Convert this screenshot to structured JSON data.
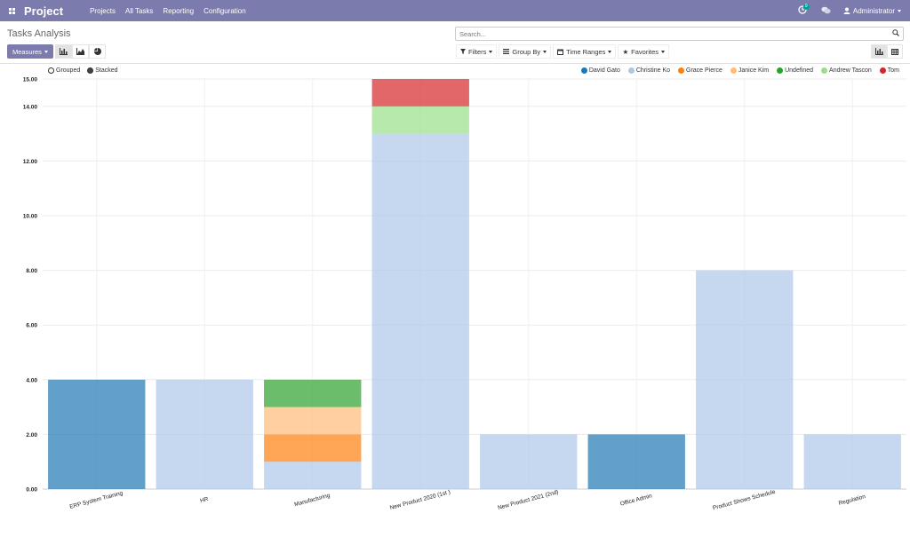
{
  "navbar": {
    "brand": "Project",
    "menu": [
      "Projects",
      "All Tasks",
      "Reporting",
      "Configuration"
    ],
    "activity_count": "9",
    "user": "Administrator",
    "color": "#7c7bad"
  },
  "page": {
    "title": "Tasks Analysis",
    "measures_label": "Measures",
    "search_placeholder": "Search...",
    "filters_label": "Filters",
    "groupby_label": "Group By",
    "timeranges_label": "Time Ranges",
    "favorites_label": "Favorites"
  },
  "legend_mode": {
    "grouped": "Grouped",
    "stacked": "Stacked",
    "selected": "stacked"
  },
  "chart_data": {
    "type": "bar",
    "stacked": true,
    "ylim": [
      0,
      15
    ],
    "yticks": [
      "0.00",
      "2.00",
      "4.00",
      "6.00",
      "8.00",
      "10.00",
      "12.00",
      "14.00",
      "15.00"
    ],
    "ytick_values": [
      0,
      2,
      4,
      6,
      8,
      10,
      12,
      14,
      15
    ],
    "categories": [
      "ERP System Training",
      "HR",
      "Manufacturing",
      "New Product 2020 (1st )",
      "New Product 2021 (2nd)",
      "Office Admin",
      "Product Shows Schedule",
      "Regulation"
    ],
    "series": [
      {
        "name": "David Gato",
        "color": "#1f77b4",
        "values": [
          4,
          0,
          0,
          0,
          0,
          2,
          0,
          0
        ]
      },
      {
        "name": "Christine Ko",
        "color": "#aec7e8",
        "values": [
          0,
          4,
          1,
          13,
          2,
          0,
          8,
          2
        ]
      },
      {
        "name": "Grace Pierce",
        "color": "#ff7f0e",
        "values": [
          0,
          0,
          1,
          0,
          0,
          0,
          0,
          0
        ]
      },
      {
        "name": "Janice Kim",
        "color": "#ffbb78",
        "values": [
          0,
          0,
          1,
          0,
          0,
          0,
          0,
          0
        ]
      },
      {
        "name": "Undefined",
        "color": "#2ca02c",
        "values": [
          0,
          0,
          1,
          0,
          0,
          0,
          0,
          0
        ]
      },
      {
        "name": "Andrew Tascon",
        "color": "#98df8a",
        "values": [
          0,
          0,
          0,
          1,
          0,
          0,
          0,
          0
        ]
      },
      {
        "name": "Tom",
        "color": "#d62728",
        "values": [
          0,
          0,
          0,
          1,
          0,
          0,
          0,
          0
        ]
      }
    ]
  }
}
